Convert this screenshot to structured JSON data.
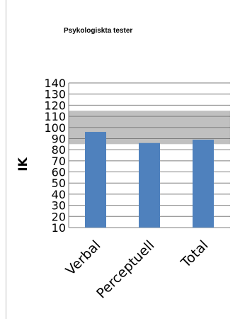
{
  "chart_data": {
    "type": "bar",
    "title": "Psykologiskta tester",
    "xlabel": "",
    "ylabel": "IK",
    "categories": [
      "Verbal",
      "Perceptuell",
      "Total"
    ],
    "values": [
      96,
      86,
      89
    ],
    "ylim": [
      10,
      140
    ],
    "y_ticks": [
      10,
      20,
      30,
      40,
      50,
      60,
      70,
      80,
      90,
      100,
      110,
      120,
      130,
      140
    ],
    "normal_range": [
      85,
      115
    ],
    "grid": true,
    "legend": "none",
    "colors": {
      "bar": "#4f81bd",
      "band": "#c0c0c0",
      "grid": "#7f7f7f"
    }
  }
}
